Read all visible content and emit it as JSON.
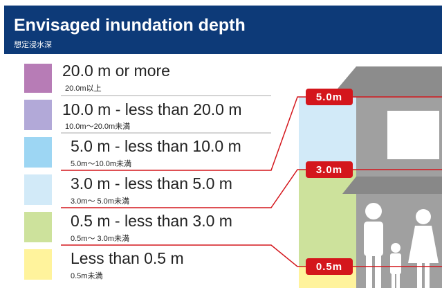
{
  "header": {
    "title": "Envisaged inundation depth",
    "subtitle": "想定浸水深"
  },
  "legend": {
    "items": [
      {
        "label": "20.0 m or more",
        "sublabel": "20.0m以上",
        "color": "#b77cb6"
      },
      {
        "label": "10.0 m - less than 20.0 m",
        "sublabel": "10.0m～20.0m未満",
        "color": "#b2a9d8"
      },
      {
        "label": "5.0 m - less than 10.0 m",
        "sublabel": "5.0m～10.0m未満",
        "color": "#9dd6f3"
      },
      {
        "label": "3.0 m - less than   5.0 m",
        "sublabel": "3.0m～ 5.0m未満",
        "color": "#d2eaf8"
      },
      {
        "label": "0.5 m - less than   3.0 m",
        "sublabel": "0.5m～ 3.0m未満",
        "color": "#cde29c"
      },
      {
        "label": "Less than 0.5 m",
        "sublabel": "0.5m未満",
        "color": "#fff39c"
      }
    ]
  },
  "markers": [
    "5.0m",
    "3.0m",
    "0.5m"
  ]
}
